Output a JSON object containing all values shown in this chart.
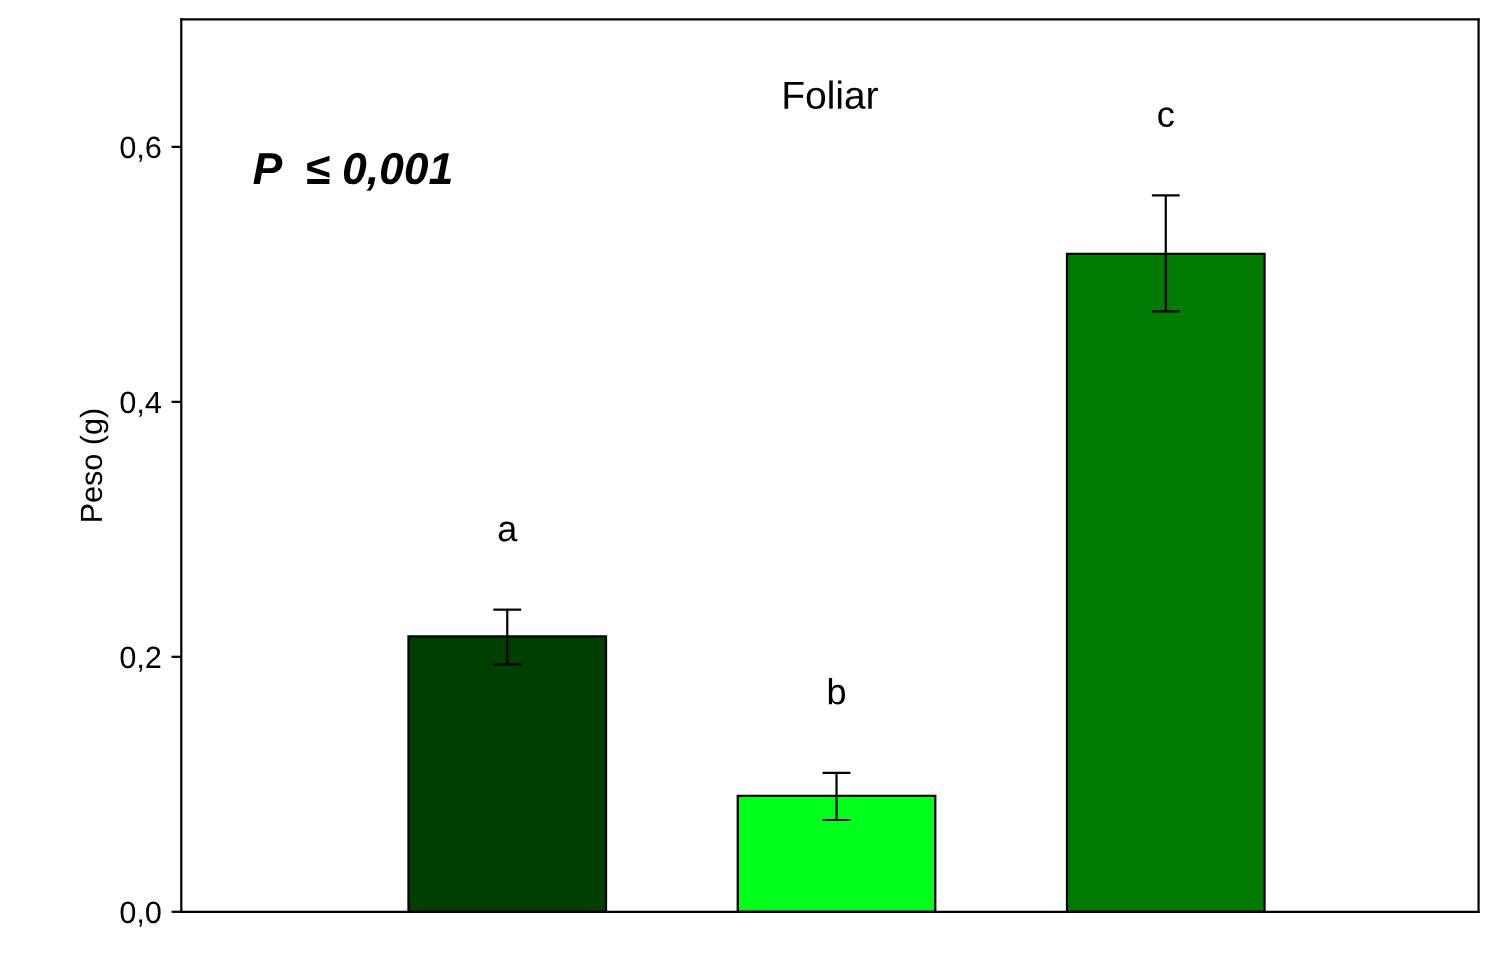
{
  "chart_data": {
    "type": "bar",
    "title": "Foliar",
    "ylabel": "Peso (g)",
    "categories": [
      null,
      null,
      null
    ],
    "values": [
      0.216,
      0.091,
      0.516
    ],
    "colors": [
      "#003f00",
      "#00ff1a",
      "#007a00"
    ],
    "errors": [
      [
        0.194,
        0.237
      ],
      [
        0.072,
        0.109
      ],
      [
        0.471,
        0.562
      ]
    ],
    "ylim": [
      0,
      0.7
    ],
    "yticks": [
      {
        "value": 0,
        "label": "0,0"
      },
      {
        "value": 0.2,
        "label": "0,2"
      },
      {
        "value": 0.4,
        "label": "0,4"
      },
      {
        "value": 0.6,
        "label": "0,6"
      }
    ],
    "annotations": [
      "P  ≤ 0,001",
      "a",
      "b",
      "c"
    ],
    "grid": false,
    "legend": false
  }
}
